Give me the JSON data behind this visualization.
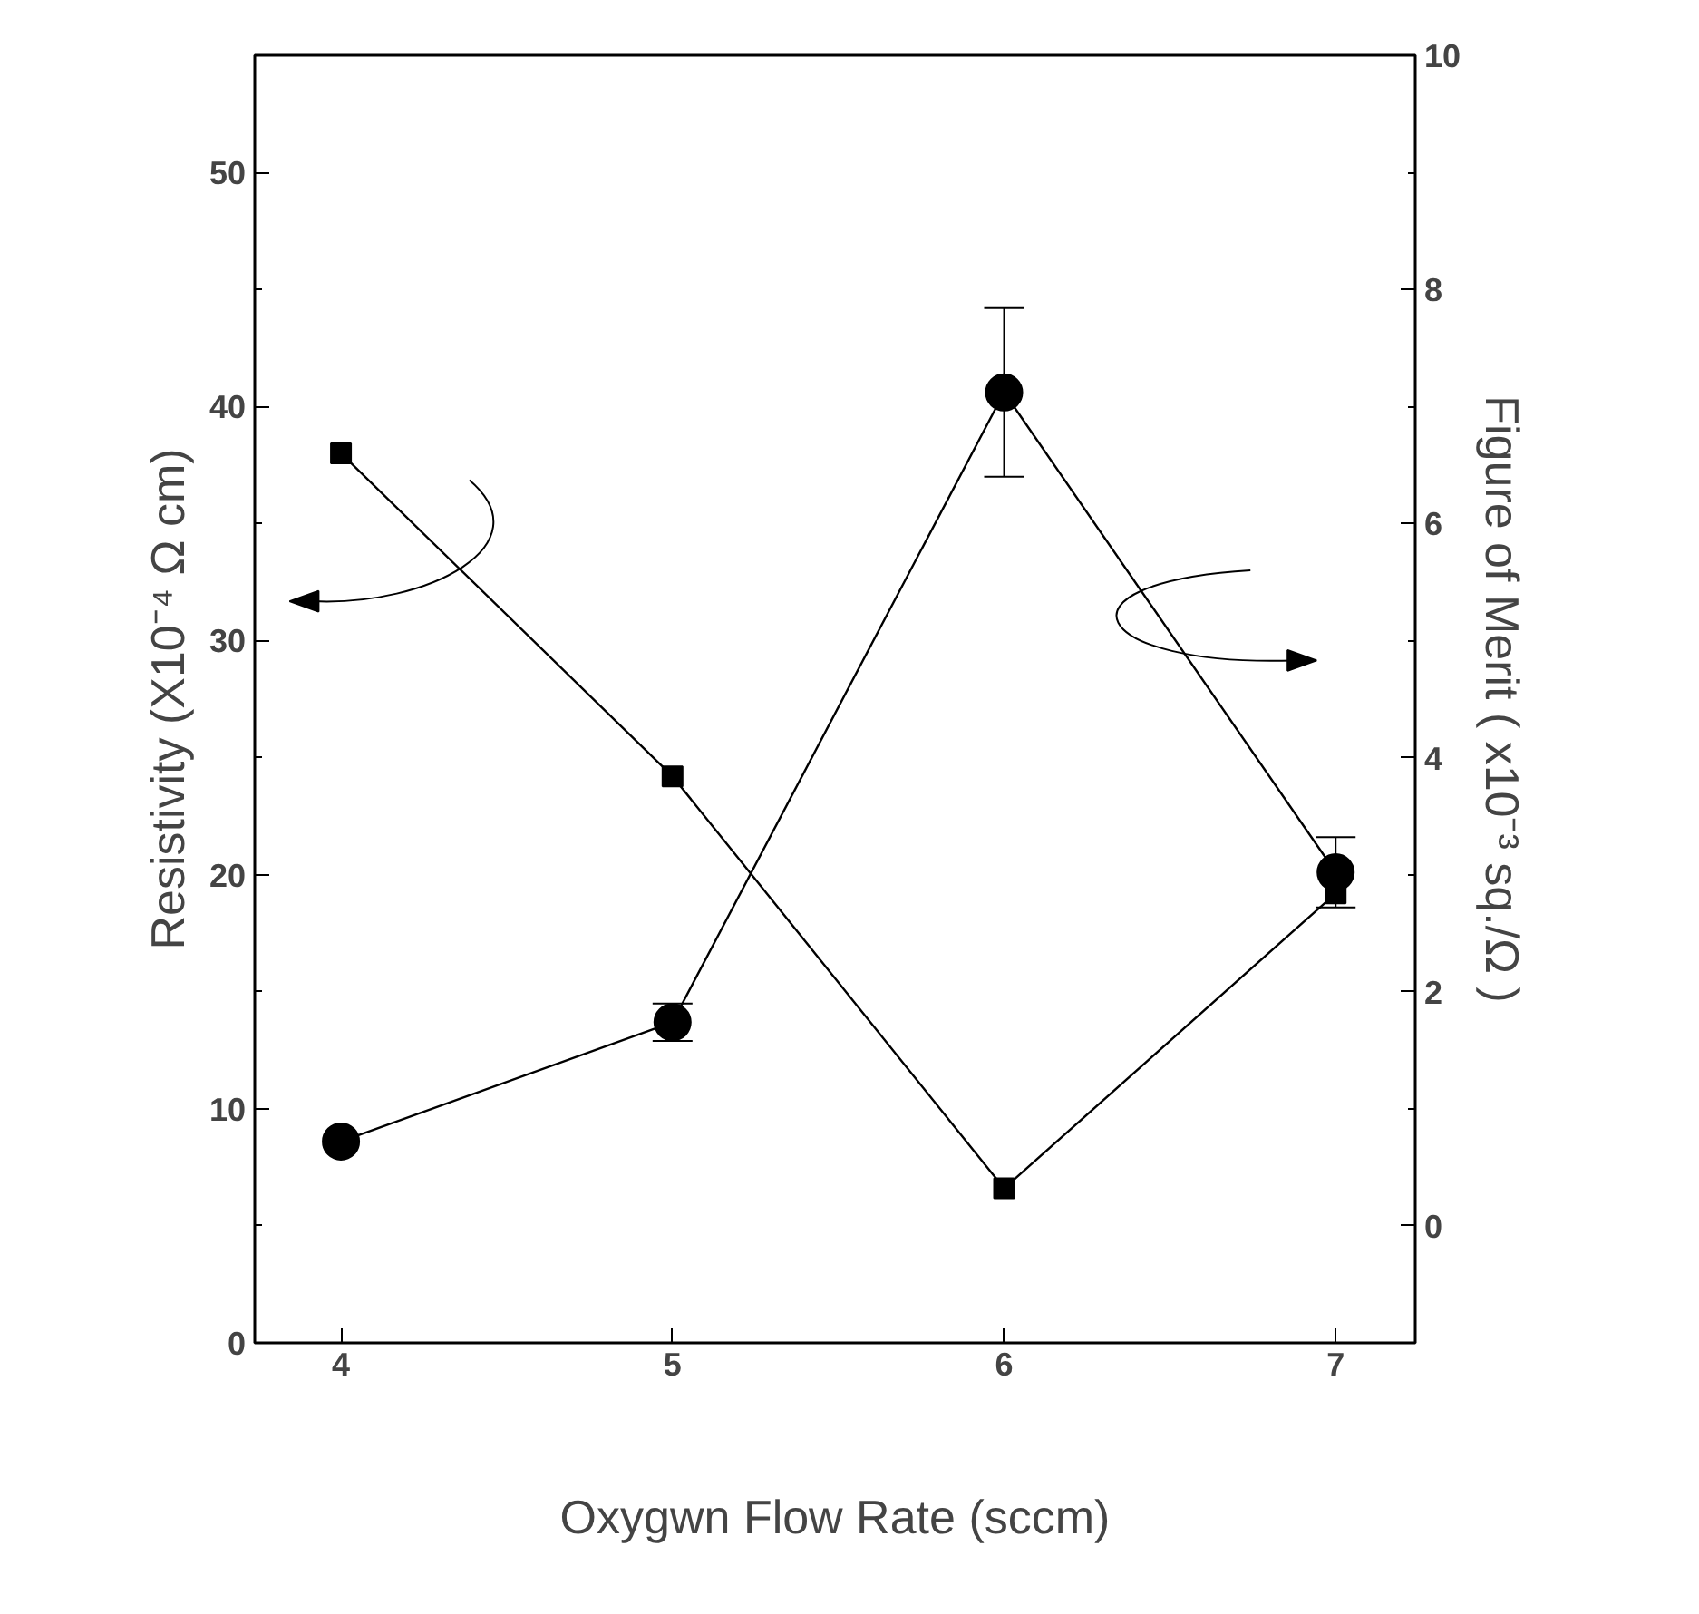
{
  "chart_data": {
    "type": "line",
    "xlabel": "Oxygwn Flow Rate (sccm)",
    "ylabel": "Resistivity (X10⁻⁴ Ω cm)",
    "y2label": "Figure of Merit ( x10⁻³ sq./Ω )",
    "x": [
      4,
      5,
      6,
      7
    ],
    "series": [
      {
        "color": "#000000",
        "values": [
          38.0,
          24.2,
          6.6,
          19.2
        ],
        "marker": "square"
      },
      {
        "color": "#000000",
        "values": [
          0.72,
          1.74,
          7.12,
          3.02
        ],
        "axis": "y2",
        "marker": "circle",
        "errors": [
          null,
          0.16,
          0.72,
          0.3
        ]
      }
    ],
    "xlim": [
      3.74,
      7.24
    ],
    "xticks": [
      4,
      5,
      6,
      7
    ],
    "ylim": [
      0,
      55
    ],
    "yticks": [
      0,
      10,
      20,
      30,
      40,
      50
    ],
    "y2lim": [
      -1,
      10
    ],
    "y2ticks": [
      0,
      2,
      4,
      6,
      8,
      10
    ],
    "grid": false,
    "line_style": "solid"
  }
}
